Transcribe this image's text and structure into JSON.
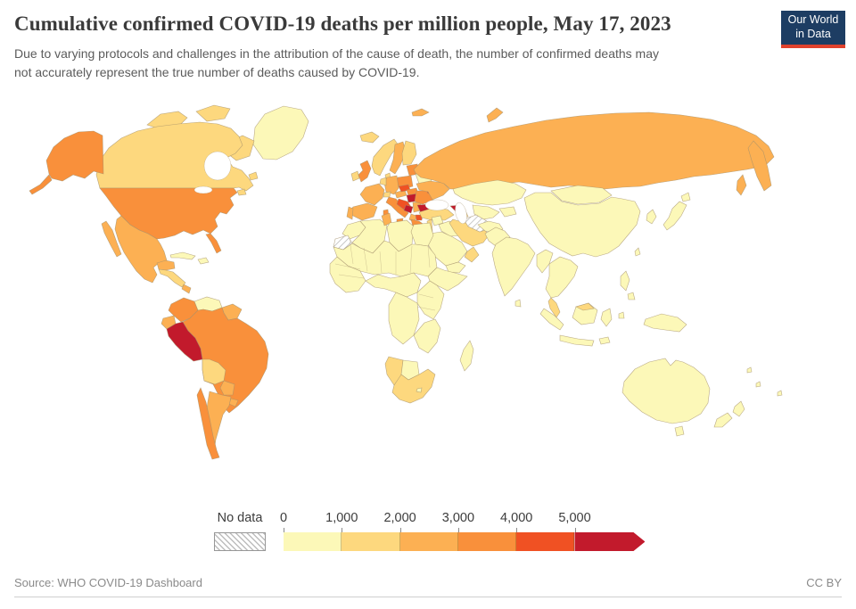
{
  "header": {
    "title": "Cumulative confirmed COVID-19 deaths per million people, May 17, 2023",
    "subtitle_lines": [
      "Due to varying protocols and challenges in the attribution of the cause of death, the number of confirmed deaths may",
      "not accurately represent the true number of deaths caused by COVID-19."
    ]
  },
  "logo": {
    "line1": "Our World",
    "line2": "in Data",
    "background": "#1d3d63",
    "stripe": "#e0422d"
  },
  "legend": {
    "no_data_label": "No data",
    "ticks": [
      "0",
      "1,000",
      "2,000",
      "3,000",
      "4,000",
      "5,000"
    ]
  },
  "footer": {
    "source": "Source: WHO COVID-19 Dashboard",
    "license": "CC BY"
  },
  "chart_data": {
    "type": "choropleth_map",
    "title": "Cumulative confirmed COVID-19 deaths per million people",
    "date": "May 17, 2023",
    "unit": "deaths per million people",
    "source": "WHO COVID-19 Dashboard",
    "scale": {
      "bins": [
        0,
        1000,
        2000,
        3000,
        4000,
        5000
      ],
      "band_labels": [
        "0–1,000",
        "1,000–2,000",
        "2,000–3,000",
        "3,000–4,000",
        "4,000–5,000",
        "5,000+"
      ],
      "colors": [
        "#fcf8b8",
        "#fdd87e",
        "#fcb053",
        "#f9903b",
        "#f05123",
        "#c21a2c"
      ],
      "no_data_style": "hatched"
    },
    "regions": [
      {
        "id": "greenland",
        "label": "Greenland",
        "band": 0
      },
      {
        "id": "canada",
        "label": "Canada",
        "band": 1
      },
      {
        "id": "united-states",
        "label": "United States",
        "band": 3
      },
      {
        "id": "mexico",
        "label": "Mexico",
        "band": 2
      },
      {
        "id": "central-america",
        "label": "Central America",
        "band": 1
      },
      {
        "id": "panama-costa-rica",
        "label": "Costa Rica & Panama",
        "band": 2
      },
      {
        "id": "cuba",
        "label": "Cuba",
        "band": 0
      },
      {
        "id": "hispaniola",
        "label": "Hispaniola",
        "band": 0
      },
      {
        "id": "colombia",
        "label": "Colombia",
        "band": 3
      },
      {
        "id": "venezuela",
        "label": "Venezuela",
        "band": 0
      },
      {
        "id": "guianas",
        "label": "Guyana & Suriname",
        "band": 2
      },
      {
        "id": "ecuador",
        "label": "Ecuador",
        "band": 2
      },
      {
        "id": "peru",
        "label": "Peru",
        "band": 5
      },
      {
        "id": "brazil",
        "label": "Brazil",
        "band": 3
      },
      {
        "id": "bolivia",
        "label": "Bolivia",
        "band": 1
      },
      {
        "id": "paraguay",
        "label": "Paraguay",
        "band": 2
      },
      {
        "id": "uruguay",
        "label": "Uruguay",
        "band": 2
      },
      {
        "id": "chile",
        "label": "Chile",
        "band": 3
      },
      {
        "id": "argentina",
        "label": "Argentina",
        "band": 2
      },
      {
        "id": "iceland",
        "label": "Iceland",
        "band": 1
      },
      {
        "id": "ireland",
        "label": "Ireland",
        "band": 1
      },
      {
        "id": "united-kingdom",
        "label": "United Kingdom",
        "band": 3
      },
      {
        "id": "portugal",
        "label": "Portugal",
        "band": 2
      },
      {
        "id": "spain",
        "label": "Spain",
        "band": 2
      },
      {
        "id": "france",
        "label": "France",
        "band": 2
      },
      {
        "id": "benelux",
        "label": "Belgium & Netherlands",
        "band": 1
      },
      {
        "id": "germany",
        "label": "Germany",
        "band": 2
      },
      {
        "id": "switzerland",
        "label": "Switzerland",
        "band": 1
      },
      {
        "id": "italy",
        "label": "Italy",
        "band": 3
      },
      {
        "id": "norway",
        "label": "Norway",
        "band": 1
      },
      {
        "id": "sweden",
        "label": "Sweden",
        "band": 2
      },
      {
        "id": "finland",
        "label": "Finland",
        "band": 1
      },
      {
        "id": "denmark",
        "label": "Denmark",
        "band": 1
      },
      {
        "id": "baltics",
        "label": "Baltic states",
        "band": 3
      },
      {
        "id": "belarus",
        "label": "Belarus",
        "band": 0
      },
      {
        "id": "poland",
        "label": "Poland",
        "band": 3
      },
      {
        "id": "czechia",
        "label": "Czechia",
        "band": 4
      },
      {
        "id": "austria",
        "label": "Austria",
        "band": 2
      },
      {
        "id": "slovakia",
        "label": "Slovakia",
        "band": 3
      },
      {
        "id": "hungary",
        "label": "Hungary",
        "band": 5
      },
      {
        "id": "croatia",
        "label": "Croatia",
        "band": 4
      },
      {
        "id": "bosnia",
        "label": "Bosnia and Herzegovina",
        "band": 5
      },
      {
        "id": "serbia",
        "label": "Serbia",
        "band": 2
      },
      {
        "id": "albania",
        "label": "Montenegro & Albania",
        "band": 2
      },
      {
        "id": "north-macedonia",
        "label": "North Macedonia",
        "band": 4
      },
      {
        "id": "romania",
        "label": "Romania",
        "band": 3
      },
      {
        "id": "moldova",
        "label": "Moldova",
        "band": 4
      },
      {
        "id": "bulgaria",
        "label": "Bulgaria",
        "band": 5
      },
      {
        "id": "greece",
        "label": "Greece",
        "band": 3
      },
      {
        "id": "ukraine",
        "label": "Ukraine",
        "band": 2
      },
      {
        "id": "russia",
        "label": "Russia",
        "band": 2
      },
      {
        "id": "svalbard",
        "label": "Svalbard",
        "band": 2
      },
      {
        "id": "novaya-zemlya",
        "label": "Novaya Zemlya",
        "band": 2
      },
      {
        "id": "turkey",
        "label": "Turkey",
        "band": 1
      },
      {
        "id": "georgia",
        "label": "Georgia",
        "band": 5
      },
      {
        "id": "azerbaijan",
        "label": "Azerbaijan & Armenia",
        "band": 1
      },
      {
        "id": "kazakhstan",
        "label": "Kazakhstan",
        "band": 0
      },
      {
        "id": "turkmenistan",
        "label": "Turkmenistan",
        "band": "no_data"
      },
      {
        "id": "uzbekistan",
        "label": "Uzbekistan",
        "band": 0
      },
      {
        "id": "central-asia",
        "label": "Kyrgyzstan & Tajikistan",
        "band": 0
      },
      {
        "id": "afghanistan",
        "label": "Afghanistan",
        "band": 0
      },
      {
        "id": "pakistan",
        "label": "Pakistan",
        "band": 0
      },
      {
        "id": "iran",
        "label": "Iran",
        "band": 1
      },
      {
        "id": "iraq",
        "label": "Iraq",
        "band": 0
      },
      {
        "id": "syria",
        "label": "Syria",
        "band": 0
      },
      {
        "id": "levant",
        "label": "Israel & Jordan",
        "band": 1
      },
      {
        "id": "saudi-arabia",
        "label": "Saudi Arabia",
        "band": 0
      },
      {
        "id": "oman",
        "label": "Oman",
        "band": 1
      },
      {
        "id": "yemen",
        "label": "Yemen",
        "band": 0
      },
      {
        "id": "morocco",
        "label": "Morocco",
        "band": 0
      },
      {
        "id": "western-sahara",
        "label": "Western Sahara",
        "band": "no_data"
      },
      {
        "id": "algeria",
        "label": "Algeria",
        "band": 0
      },
      {
        "id": "tunisia",
        "label": "Tunisia",
        "band": 2
      },
      {
        "id": "libya",
        "label": "Libya",
        "band": 0
      },
      {
        "id": "egypt",
        "label": "Egypt",
        "band": 0
      },
      {
        "id": "sahel",
        "label": "Sahel (Mauritania–Sudan)",
        "band": 0
      },
      {
        "id": "west-africa",
        "label": "West Africa",
        "band": 0
      },
      {
        "id": "central-africa",
        "label": "Nigeria & Central Africa",
        "band": 0
      },
      {
        "id": "horn-of-africa",
        "label": "Horn of Africa",
        "band": 0
      },
      {
        "id": "east-africa",
        "label": "East Africa",
        "band": 0
      },
      {
        "id": "congo-angola",
        "label": "DR Congo & Angola",
        "band": 0
      },
      {
        "id": "zambezi",
        "label": "Zambia–Mozambique",
        "band": 0
      },
      {
        "id": "namibia",
        "label": "Namibia",
        "band": 1
      },
      {
        "id": "botswana",
        "label": "Botswana",
        "band": 0
      },
      {
        "id": "south-africa",
        "label": "South Africa",
        "band": 1
      },
      {
        "id": "lesotho",
        "label": "Lesotho",
        "band": 0
      },
      {
        "id": "madagascar",
        "label": "Madagascar",
        "band": 0
      },
      {
        "id": "india",
        "label": "India",
        "band": 0
      },
      {
        "id": "sri-lanka",
        "label": "Sri Lanka",
        "band": 0
      },
      {
        "id": "china",
        "label": "China",
        "band": 0
      },
      {
        "id": "mongolia",
        "label": "Mongolia",
        "band": 0
      },
      {
        "id": "korea",
        "label": "Korea",
        "band": 0
      },
      {
        "id": "japan",
        "label": "Japan",
        "band": 0
      },
      {
        "id": "taiwan",
        "label": "Taiwan",
        "band": 0
      },
      {
        "id": "myanmar",
        "label": "Myanmar & Bangladesh",
        "band": 0
      },
      {
        "id": "southeast-asia",
        "label": "Mainland Southeast Asia",
        "band": 0
      },
      {
        "id": "malaysia",
        "label": "Malaysia",
        "band": 1
      },
      {
        "id": "borneo-malaysia",
        "label": "East Malaysia",
        "band": 1
      },
      {
        "id": "indonesia",
        "label": "Indonesia",
        "band": 0
      },
      {
        "id": "philippines",
        "label": "Philippines",
        "band": 0
      },
      {
        "id": "new-guinea",
        "label": "Papua New Guinea",
        "band": 0
      },
      {
        "id": "australia",
        "label": "Australia",
        "band": 0
      },
      {
        "id": "new-zealand",
        "label": "New Zealand",
        "band": 0
      },
      {
        "id": "pacific-islands",
        "label": "Pacific islands",
        "band": 0
      }
    ]
  }
}
